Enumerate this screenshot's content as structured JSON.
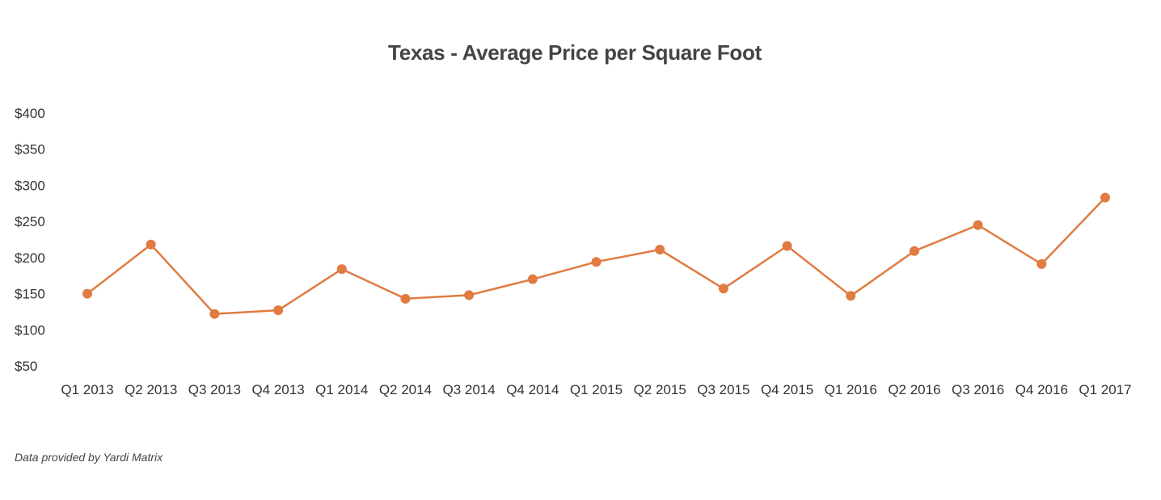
{
  "chart_data": {
    "type": "line",
    "title": "Texas - Average Price per Square Foot",
    "xlabel": "",
    "ylabel": "",
    "categories": [
      "Q1 2013",
      "Q2 2013",
      "Q3 2013",
      "Q4 2013",
      "Q1 2014",
      "Q2 2014",
      "Q3 2014",
      "Q4 2014",
      "Q1 2015",
      "Q2 2015",
      "Q3 2015",
      "Q4 2015",
      "Q1 2016",
      "Q2 2016",
      "Q3 2016",
      "Q4 2016",
      "Q1 2017"
    ],
    "series": [
      {
        "values": [
          150,
          218,
          122,
          127,
          184,
          143,
          148,
          170,
          194,
          211,
          157,
          216,
          147,
          209,
          245,
          191,
          283
        ],
        "color": "#e07b42"
      }
    ],
    "y_ticks": [
      50,
      100,
      150,
      200,
      250,
      300,
      350,
      400
    ],
    "y_tick_labels": [
      "$50",
      "$100",
      "$150",
      "$200",
      "$250",
      "$300",
      "$350",
      "$400"
    ],
    "ylim": [
      50,
      400
    ],
    "grid": false,
    "legend": "none"
  },
  "footer": {
    "source": "Data provided by Yardi Matrix"
  }
}
